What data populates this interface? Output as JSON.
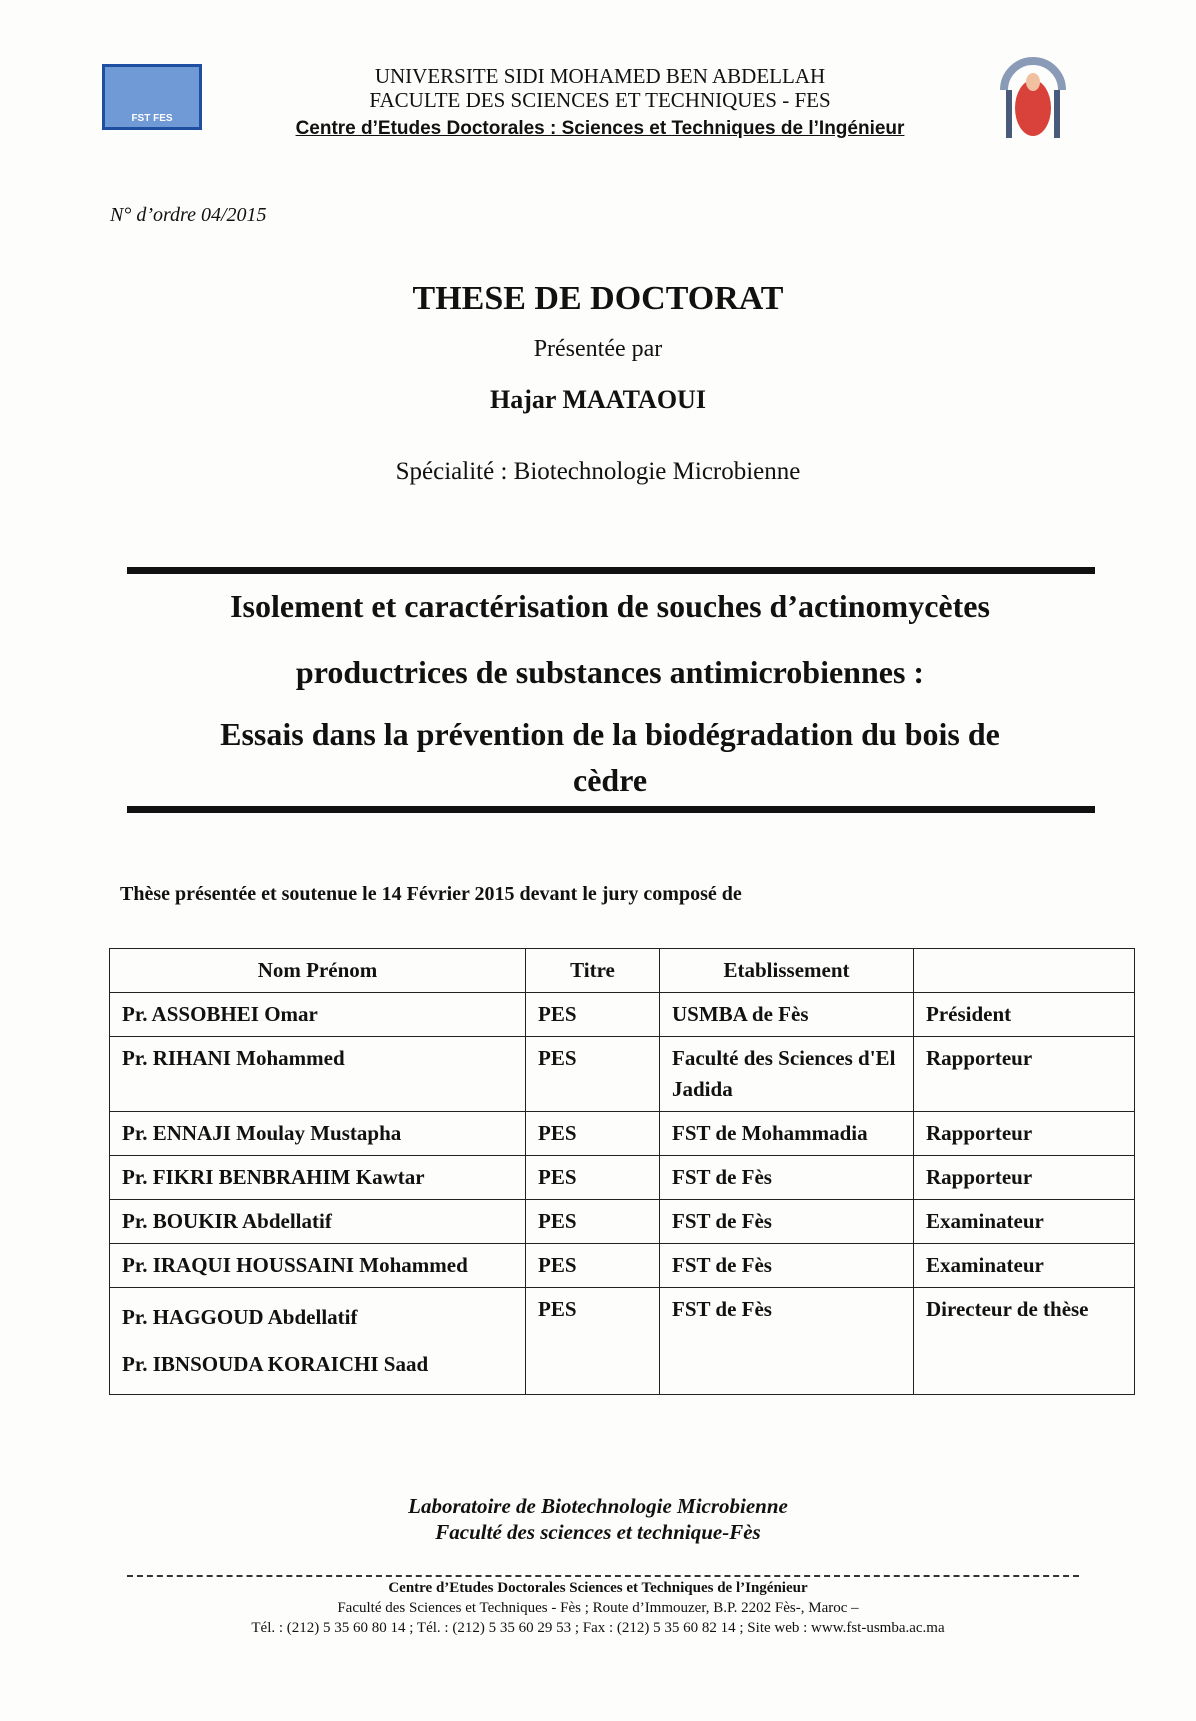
{
  "header": {
    "logo_left_text": "FST FES",
    "university": "UNIVERSITE SIDI MOHAMED BEN ABDELLAH",
    "faculty": "FACULTE DES SCIENCES ET TECHNIQUES - FES",
    "doctoral_center": "Centre d’Etudes Doctorales : Sciences et Techniques de l’Ingénieur"
  },
  "order_number": "N° d’ordre 04/2015",
  "doc_type": "THESE DE DOCTORAT",
  "presented_by": "Présentée par",
  "author": "Hajar MAATAOUI",
  "specialty": "Spécialité : Biotechnologie Microbienne",
  "title_lines": [
    "Isolement et caractérisation de souches d’actinomycètes",
    "productrices de substances antimicrobiennes :",
    "Essais dans la prévention de la biodégradation du bois de",
    "cèdre"
  ],
  "jury_intro": "Thèse présentée et soutenue le 14 Février 2015  devant le jury composé de",
  "jury": {
    "headers": [
      "Nom Prénom",
      "Titre",
      "Etablissement",
      ""
    ],
    "rows": [
      [
        "Pr. ASSOBHEI Omar",
        "PES",
        "USMBA de Fès",
        "Président"
      ],
      [
        "Pr. RIHANI Mohammed",
        "PES",
        "Faculté des Sciences d'El Jadida",
        "Rapporteur"
      ],
      [
        "Pr. ENNAJI Moulay Mustapha",
        "PES",
        "FST de Mohammadia",
        "Rapporteur"
      ],
      [
        "Pr. FIKRI BENBRAHIM Kawtar",
        "PES",
        "FST de Fès",
        "Rapporteur"
      ],
      [
        "Pr. BOUKIR Abdellatif",
        "PES",
        "FST de Fès",
        "Examinateur"
      ],
      [
        "Pr. IRAQUI HOUSSAINI Mohammed",
        "PES",
        "FST de Fès",
        "Examinateur"
      ],
      [
        "Pr. HAGGOUD Abdellatif\nPr. IBNSOUDA KORAICHI Saad",
        "PES",
        "FST de Fès",
        "Directeur de thèse"
      ]
    ]
  },
  "laboratory": [
    "Laboratoire de Biotechnologie Microbienne",
    "Faculté des sciences et technique-Fès"
  ],
  "footer": {
    "center": "Centre d’Etudes Doctorales Sciences et Techniques de l’Ingénieur",
    "address": "Faculté des Sciences et Techniques - Fès ; Route d’Immouzer, B.P. 2202 Fès-, Maroc –",
    "contact": "Tél. : (212) 5 35 60 80 14 ; Tél. : (212) 5 35 60 29 53 ;   Fax : (212) 5 35 60 82  14 ;   Site web : www.fst-usmba.ac.ma"
  }
}
